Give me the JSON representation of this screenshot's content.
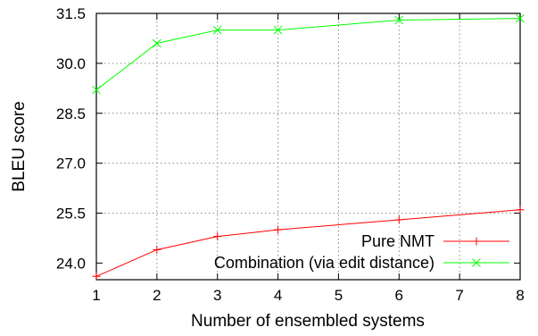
{
  "chart_data": {
    "type": "line",
    "xlabel": "Number of ensembled systems",
    "ylabel": "BLEU score",
    "xlim": [
      1,
      8
    ],
    "ylim": [
      23.5,
      31.5
    ],
    "x_ticks": [
      "1",
      "2",
      "3",
      "4",
      "5",
      "6",
      "7",
      "8"
    ],
    "y_ticks": [
      "24.0",
      "25.5",
      "27.0",
      "28.5",
      "30.0",
      "31.5"
    ],
    "y_tick_values": [
      24.0,
      25.5,
      27.0,
      28.5,
      30.0,
      31.5
    ],
    "grid": true,
    "legend_position": "bottom-right",
    "series": [
      {
        "name": "Pure NMT",
        "color": "#ff0000",
        "marker": "plus",
        "points": [
          [
            1,
            23.6
          ],
          [
            2,
            24.4
          ],
          [
            3,
            24.8
          ],
          [
            4,
            25.0
          ],
          [
            6,
            25.3
          ],
          [
            8,
            25.6
          ]
        ]
      },
      {
        "name": "Combination (via edit distance)",
        "color": "#00ff00",
        "marker": "cross",
        "points": [
          [
            1,
            29.2
          ],
          [
            2,
            30.6
          ],
          [
            3,
            31.0
          ],
          [
            4,
            31.0
          ],
          [
            6,
            31.3
          ],
          [
            8,
            31.35
          ]
        ]
      }
    ]
  }
}
